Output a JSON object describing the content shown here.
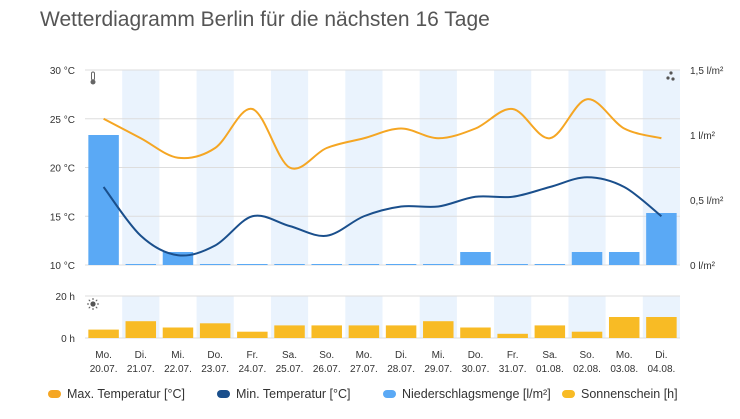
{
  "title": "Wetterdiagramm Berlin für die nächsten 16 Tage",
  "colors": {
    "max_temp": "#f5a623",
    "min_temp": "#1a4f8c",
    "precip": "#5aa9f5",
    "sun": "#f8bb25",
    "band": "#eaf3fd",
    "grid": "#dddddd"
  },
  "icons": {
    "temperature": "thermometer-icon",
    "precipitation": "raindrops-icon",
    "sunshine": "sun-icon"
  },
  "chart_data": {
    "type": "line",
    "title": "Wetterdiagramm Berlin für die nächsten 16 Tage",
    "categories": [
      [
        "Mo.",
        "20.07."
      ],
      [
        "Di.",
        "21.07."
      ],
      [
        "Mi.",
        "22.07."
      ],
      [
        "Do.",
        "23.07."
      ],
      [
        "Fr.",
        "24.07."
      ],
      [
        "Sa.",
        "25.07."
      ],
      [
        "So.",
        "26.07."
      ],
      [
        "Mo.",
        "27.07."
      ],
      [
        "Di.",
        "28.07."
      ],
      [
        "Mi.",
        "29.07."
      ],
      [
        "Do.",
        "30.07."
      ],
      [
        "Fr.",
        "31.07."
      ],
      [
        "Sa.",
        "01.08."
      ],
      [
        "So.",
        "02.08."
      ],
      [
        "Mo.",
        "03.08."
      ],
      [
        "Di.",
        "04.08."
      ]
    ],
    "temp_axis": {
      "ticks": [
        "10 °C",
        "15 °C",
        "20 °C",
        "25 °C",
        "30 °C"
      ],
      "min": 10,
      "max": 30
    },
    "precip_axis": {
      "ticks": [
        "0 l/m²",
        "0,5 l/m²",
        "1 l/m²",
        "1,5 l/m²"
      ],
      "min": 0,
      "max": 1.5
    },
    "sun_axis": {
      "ticks": [
        "0 h",
        "20 h"
      ],
      "min": 0,
      "max": 20
    },
    "series": [
      {
        "name": "Max. Temperatur [°C]",
        "kind": "line",
        "values": [
          25,
          23,
          21,
          22,
          26,
          20,
          22,
          23,
          24,
          23,
          24,
          26,
          23,
          27,
          24,
          23
        ]
      },
      {
        "name": "Min. Temperatur [°C]",
        "kind": "line",
        "values": [
          18,
          13,
          11,
          12,
          15,
          14,
          13,
          15,
          16,
          16,
          17,
          17,
          18,
          19,
          18,
          15
        ]
      },
      {
        "name": "Niederschlagsmenge [l/m²]",
        "kind": "bar",
        "values": [
          1.0,
          0,
          0.1,
          0,
          0,
          0,
          0,
          0,
          0,
          0,
          0.1,
          0,
          0,
          0.1,
          0.1,
          0.4
        ]
      },
      {
        "name": "Sonnenschein [h]",
        "kind": "bar",
        "values": [
          4,
          8,
          5,
          7,
          3,
          6,
          6,
          6,
          6,
          8,
          5,
          2,
          6,
          3,
          10,
          10
        ]
      }
    ],
    "legend_position": "bottom",
    "grid": true
  }
}
